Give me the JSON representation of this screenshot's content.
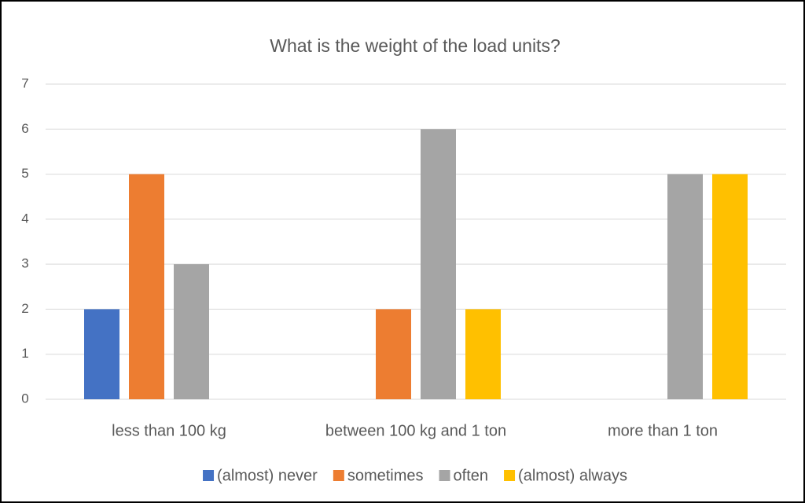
{
  "chart_data": {
    "type": "bar",
    "title": "What is the weight of the load units?",
    "categories": [
      "less than 100 kg",
      "between 100 kg and 1 ton",
      "more than 1 ton"
    ],
    "series": [
      {
        "name": "(almost) never",
        "color": "#4472c4",
        "values": [
          2,
          0,
          0
        ]
      },
      {
        "name": "sometimes",
        "color": "#ed7d31",
        "values": [
          5,
          2,
          0
        ]
      },
      {
        "name": "often",
        "color": "#a5a5a5",
        "values": [
          3,
          6,
          5
        ]
      },
      {
        "name": "(almost) always",
        "color": "#ffc000",
        "values": [
          0,
          2,
          5
        ]
      }
    ],
    "ylim": [
      0,
      7
    ],
    "yticks": [
      0,
      1,
      2,
      3,
      4,
      5,
      6,
      7
    ],
    "grid": true,
    "legend": "bottom"
  }
}
